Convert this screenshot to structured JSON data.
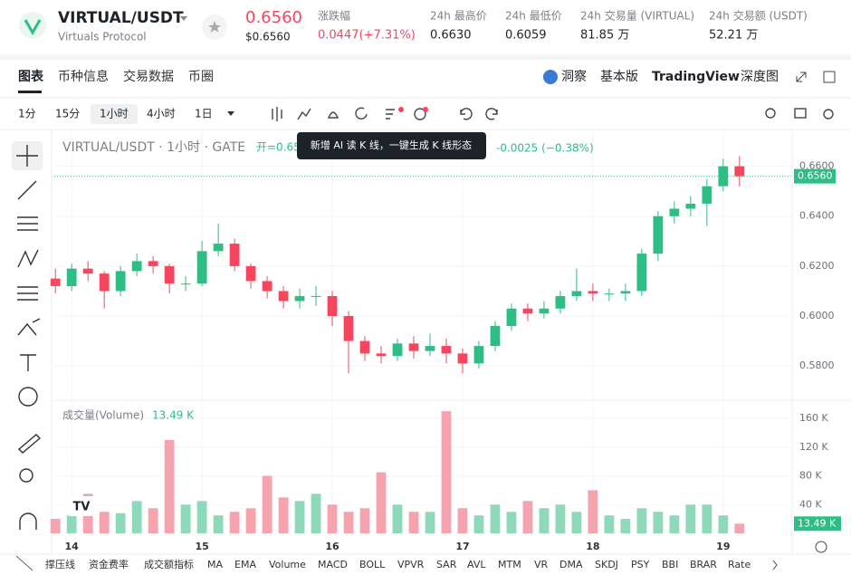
{
  "header": {
    "pair": "VIRTUAL/USDT",
    "project": "Virtuals Protocol",
    "price": "0.6560",
    "price_usd": "$0.6560",
    "change_label": "涨跌幅",
    "change": "0.0447(+7.31%)",
    "stats": [
      {
        "label": "24h 最高价",
        "value": "0.6630"
      },
      {
        "label": "24h 最低价",
        "value": "0.6059"
      },
      {
        "label": "24h 交易量 (VIRTUAL)",
        "value": "81.85 万"
      },
      {
        "label": "24h 交易额 (USDT)",
        "value": "52.21 万"
      }
    ]
  },
  "tabs": [
    "图表",
    "币种信息",
    "交易数据",
    "币圈"
  ],
  "views": [
    "洞察",
    "基本版",
    "TradingView",
    "深度图"
  ],
  "intervals": [
    "1分",
    "15分",
    "1小时",
    "4小时",
    "1日"
  ],
  "tooltip": "新增 AI 读 K 线，一键生成 K 线形态",
  "chart": {
    "type": "candlestick",
    "title": "VIRTUAL/USDT · 1小时 · GATE",
    "open_label": "开=0.65",
    "change": "-0.0025 (−0.38%)",
    "up_color": "#2ebd85",
    "down_color": "#f6465d",
    "volume_up_color": "#8fd9bb",
    "volume_down_color": "#f5a3ad",
    "x": [
      -3,
      0,
      3,
      6,
      9,
      12,
      15,
      18,
      21,
      24,
      27,
      30,
      33,
      36,
      39,
      42,
      45,
      48,
      51,
      54,
      57,
      60,
      63,
      66,
      69,
      72,
      75,
      78,
      81,
      84,
      87,
      90,
      93,
      96,
      99,
      102,
      105,
      108,
      111,
      114,
      117,
      120,
      123
    ],
    "xlim": [
      -3.2,
      132.7
    ],
    "xticks": [
      {
        "value": 0,
        "label": "14"
      },
      {
        "value": 24,
        "label": "15"
      },
      {
        "value": 48,
        "label": "16"
      },
      {
        "value": 72,
        "label": "17"
      },
      {
        "value": 96,
        "label": "18"
      },
      {
        "value": 120,
        "label": "19"
      }
    ],
    "open": [
      0.615,
      0.612,
      0.619,
      0.617,
      0.61,
      0.618,
      0.622,
      0.62,
      0.613,
      0.613,
      0.626,
      0.629,
      0.62,
      0.614,
      0.61,
      0.606,
      0.608,
      0.608,
      0.6,
      0.59,
      0.585,
      0.584,
      0.589,
      0.586,
      0.588,
      0.585,
      0.581,
      0.588,
      0.596,
      0.603,
      0.601,
      0.603,
      0.608,
      0.61,
      0.609,
      0.609,
      0.61,
      0.625,
      0.64,
      0.643,
      0.645,
      0.652,
      0.66
    ],
    "high": [
      0.619,
      0.621,
      0.622,
      0.618,
      0.62,
      0.625,
      0.624,
      0.621,
      0.616,
      0.63,
      0.637,
      0.631,
      0.621,
      0.616,
      0.612,
      0.611,
      0.612,
      0.61,
      0.602,
      0.592,
      0.588,
      0.591,
      0.592,
      0.593,
      0.591,
      0.587,
      0.59,
      0.598,
      0.605,
      0.605,
      0.606,
      0.61,
      0.619,
      0.613,
      0.611,
      0.613,
      0.627,
      0.642,
      0.646,
      0.648,
      0.655,
      0.663,
      0.664
    ],
    "low": [
      0.609,
      0.61,
      0.614,
      0.603,
      0.608,
      0.616,
      0.617,
      0.609,
      0.61,
      0.612,
      0.624,
      0.618,
      0.611,
      0.607,
      0.603,
      0.603,
      0.604,
      0.596,
      0.577,
      0.582,
      0.581,
      0.582,
      0.583,
      0.584,
      0.581,
      0.577,
      0.579,
      0.586,
      0.594,
      0.598,
      0.599,
      0.601,
      0.606,
      0.606,
      0.606,
      0.606,
      0.608,
      0.622,
      0.637,
      0.64,
      0.636,
      0.65,
      0.652
    ],
    "close": [
      0.612,
      0.619,
      0.617,
      0.61,
      0.618,
      0.622,
      0.62,
      0.613,
      0.613,
      0.626,
      0.629,
      0.62,
      0.614,
      0.61,
      0.606,
      0.608,
      0.608,
      0.6,
      0.59,
      0.585,
      0.584,
      0.589,
      0.586,
      0.588,
      0.585,
      0.581,
      0.588,
      0.596,
      0.603,
      0.601,
      0.603,
      0.608,
      0.61,
      0.609,
      0.609,
      0.61,
      0.625,
      0.64,
      0.643,
      0.645,
      0.652,
      0.66,
      0.656
    ],
    "ylim": [
      0.567,
      0.674
    ],
    "yticks": [
      {
        "value": 0.58,
        "label": "0.5800"
      },
      {
        "value": 0.6,
        "label": "0.6000"
      },
      {
        "value": 0.62,
        "label": "0.6200"
      },
      {
        "value": 0.64,
        "label": "0.6400"
      },
      {
        "value": 0.66,
        "label": "0.6600"
      }
    ],
    "last_price": {
      "value": 0.656,
      "label": "0.6560"
    },
    "volume_title": "成交量(Volume)",
    "volume_last": {
      "value": 13.49,
      "label": "13.49 K"
    },
    "volume": [
      20,
      25,
      55,
      30,
      28,
      45,
      35,
      130,
      40,
      45,
      25,
      30,
      35,
      80,
      50,
      45,
      55,
      40,
      30,
      35,
      85,
      40,
      30,
      30,
      170,
      35,
      25,
      40,
      30,
      45,
      35,
      40,
      30,
      60,
      25,
      20,
      35,
      30,
      25,
      40,
      40,
      25,
      13.49
    ],
    "volume_ylim": [
      0,
      181.5
    ],
    "volume_yticks": [
      {
        "value": 40,
        "label": "40 K"
      },
      {
        "value": 80,
        "label": "80 K"
      },
      {
        "value": 120,
        "label": "120 K"
      },
      {
        "value": 160,
        "label": "160 K"
      }
    ]
  },
  "indicators": [
    "撑压线",
    "资金费率",
    "成交额指标",
    "MA",
    "EMA",
    "Volume",
    "MACD",
    "BOLL",
    "VPVR",
    "SAR",
    "AVL",
    "MTM",
    "VR",
    "DMA",
    "SKDJ",
    "PSY",
    "BBI",
    "BRAR",
    "Rate"
  ]
}
